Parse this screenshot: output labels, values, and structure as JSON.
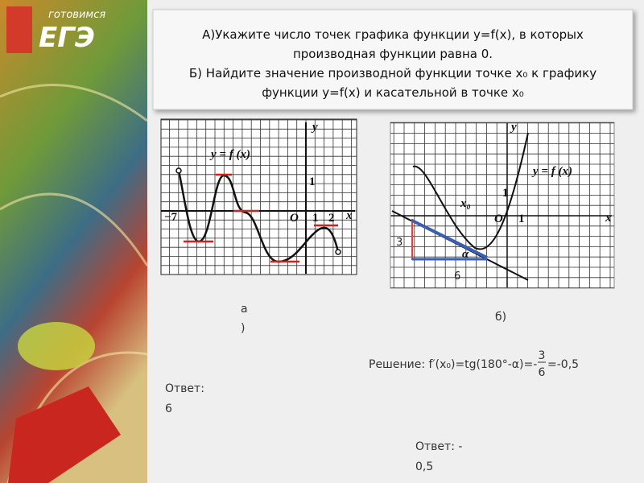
{
  "logo": {
    "small": "готовимся",
    "big": "ЕГЭ"
  },
  "task": {
    "lines": [
      "А)Укажите число точек графика функции y=f(x), в которых",
      "производная функции равна 0.",
      "Б) Найдите значение производной функции точке x₀ к графику",
      "функции y=f(x) и касательной в точке x₀"
    ]
  },
  "figure_a": {
    "y_axis": "y",
    "x_axis": "x",
    "function": "y = f (x)",
    "start": "−7",
    "origin": "O",
    "one_x": "1",
    "two_x": "2",
    "one_y": "1"
  },
  "figure_b": {
    "y_axis": "y",
    "x_axis": "x",
    "function": "y = f (x)",
    "point": "x₀",
    "origin": "O",
    "one_x": "1",
    "one_y": "1",
    "leg_vertical": "3",
    "leg_horizontal": "6",
    "angle": "α"
  },
  "caption_a": {
    "lines": [
      "а",
      ")"
    ]
  },
  "caption_b": "б)",
  "solution": {
    "prefix": "Решение: f′(x₀)=tg(180°-α)=-",
    "numerator": "3",
    "denominator": "6",
    "suffix": "=-0,5"
  },
  "answer_a": {
    "lines": [
      "Ответ:",
      "6"
    ]
  },
  "answer_b": {
    "lines": [
      "Ответ: -",
      "0,5"
    ]
  }
}
